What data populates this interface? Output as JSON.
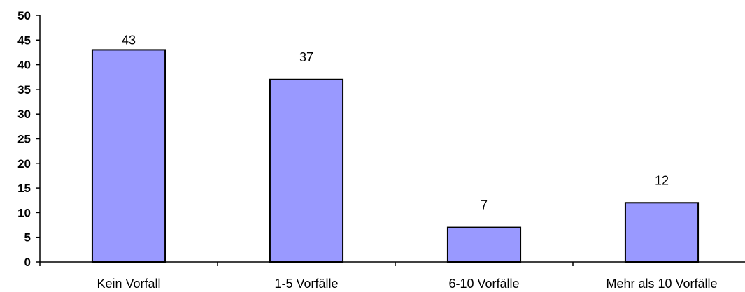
{
  "chart_data": {
    "type": "bar",
    "categories": [
      "Kein Vorfall",
      "1-5 Vorfälle",
      "6-10 Vorfälle",
      "Mehr als 10 Vorfälle"
    ],
    "values": [
      43,
      37,
      7,
      12
    ],
    "data_labels": [
      "43",
      "37",
      "7",
      "12"
    ],
    "title": "",
    "xlabel": "",
    "ylabel": "",
    "ylim": [
      0,
      50
    ],
    "yticks": [
      0,
      5,
      10,
      15,
      20,
      25,
      30,
      35,
      40,
      45,
      50
    ],
    "grid": false,
    "legend": "none",
    "bar_color": "#9999ff",
    "bar_edge_color": "#000000"
  }
}
